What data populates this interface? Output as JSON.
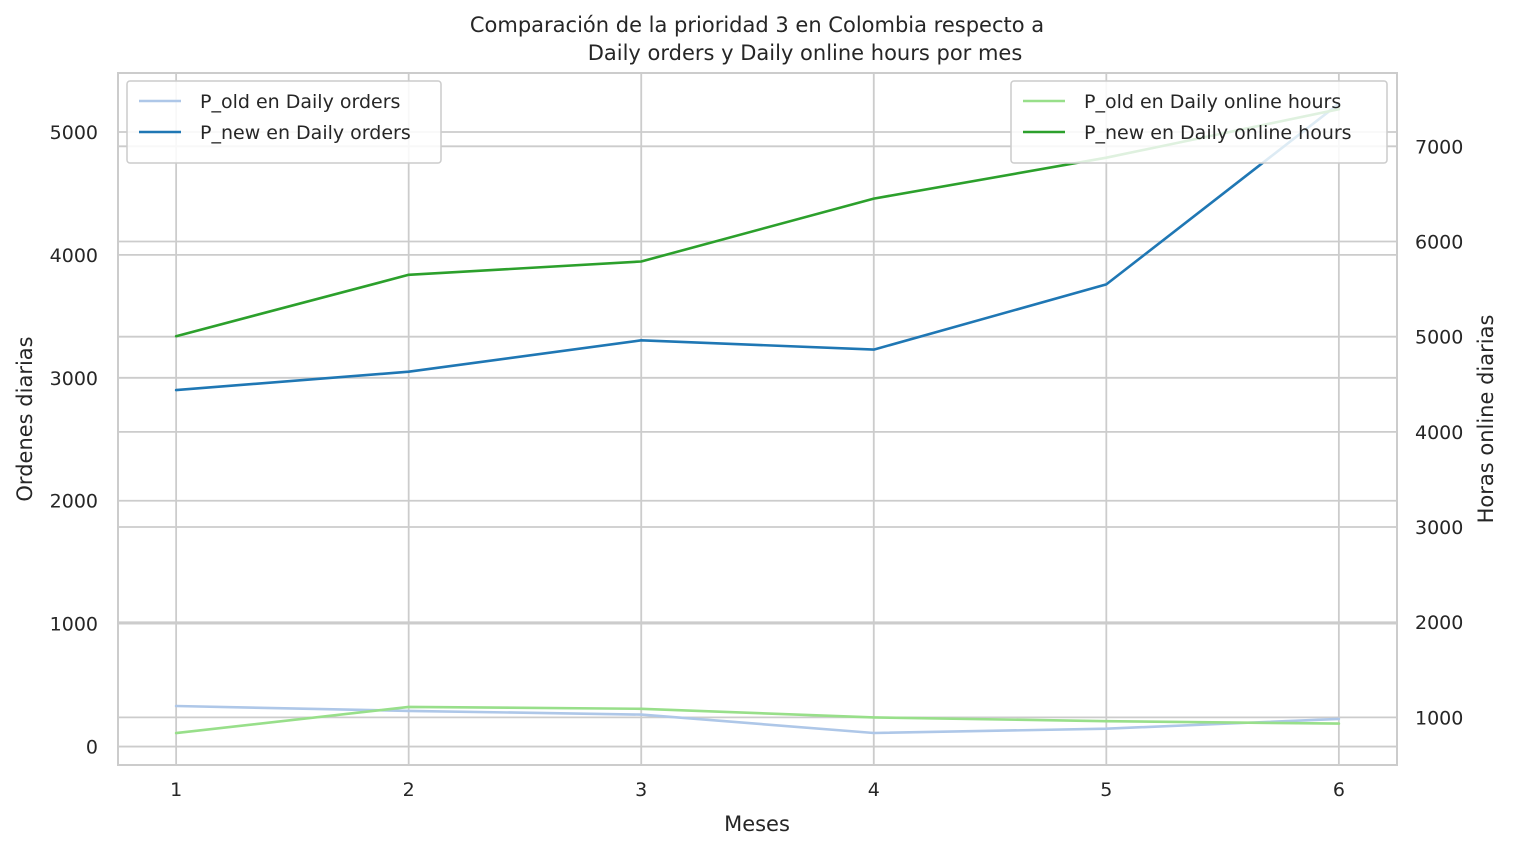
{
  "chart_data": {
    "type": "line",
    "title": "Comparación de la prioridad 3 en Colombia respecto a\n        Daily orders y Daily online hours por mes",
    "title_lines": [
      "Comparación de la prioridad 3 en Colombia respecto a",
      "Daily orders y Daily online hours por mes"
    ],
    "xlabel": "Meses",
    "ylabel": "Ordenes diarias",
    "y2label": "Horas online diarias",
    "x": [
      1,
      2,
      3,
      4,
      5,
      6
    ],
    "xticks": [
      "1",
      "2",
      "3",
      "4",
      "5",
      "6"
    ],
    "xlim": [
      0.75,
      6.25
    ],
    "ylim": [
      -150,
      5480
    ],
    "yticks": [
      0,
      1000,
      2000,
      3000,
      4000,
      5000
    ],
    "y2lim": [
      500,
      7770
    ],
    "y2ticks": [
      1000,
      2000,
      3000,
      4000,
      5000,
      6000,
      7000
    ],
    "grid": true,
    "series": [
      {
        "name": "P_old en Daily orders",
        "axis": "left",
        "color": "#aec7e8",
        "values": [
          330,
          290,
          260,
          110,
          145,
          225
        ]
      },
      {
        "name": "P_new en Daily orders",
        "axis": "left",
        "color": "#1f77b4",
        "values": [
          2900,
          3050,
          3305,
          3230,
          3760,
          5230
        ]
      },
      {
        "name": "P_old en Daily online hours",
        "axis": "right",
        "color": "#98df8a",
        "values": [
          835,
          1110,
          1090,
          1000,
          960,
          935
        ]
      },
      {
        "name": "P_new en Daily online hours",
        "axis": "right",
        "color": "#2ca02c",
        "values": [
          5005,
          5650,
          5790,
          6450,
          6880,
          7390
        ]
      }
    ],
    "legend_left": [
      "P_old en Daily orders",
      "P_new en Daily orders"
    ],
    "legend_right": [
      "P_old en Daily online hours",
      "P_new en Daily online hours"
    ],
    "legend_left_position": "upper left",
    "legend_right_position": "upper right"
  }
}
